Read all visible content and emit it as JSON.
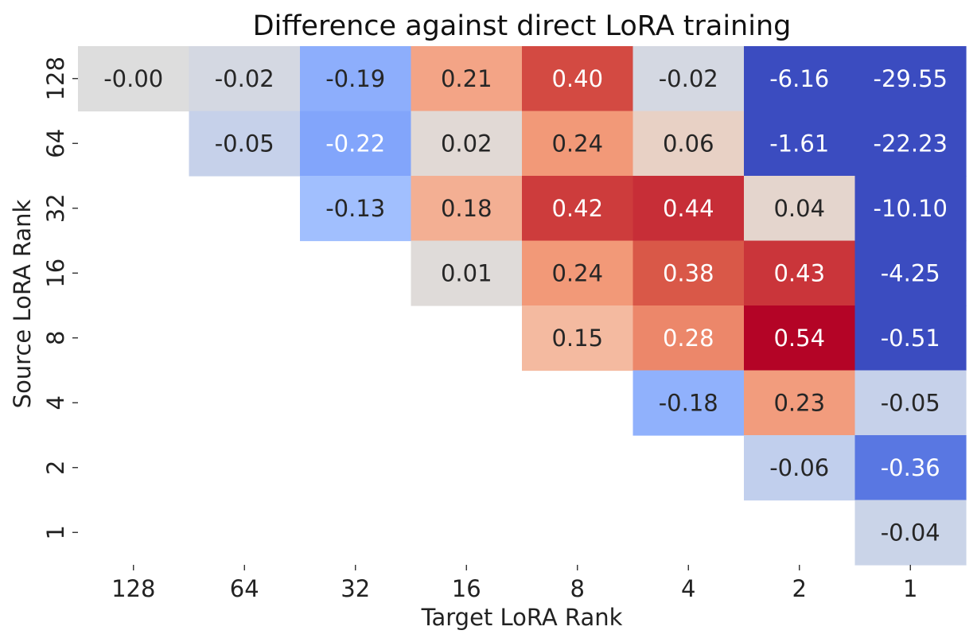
{
  "chart_data": {
    "type": "heatmap",
    "title": "Difference against direct LoRA training",
    "xlabel": "Target LoRA Rank",
    "ylabel": "Source LoRA Rank",
    "x_categories": [
      "128",
      "64",
      "32",
      "16",
      "8",
      "4",
      "2",
      "1"
    ],
    "y_categories": [
      "128",
      "64",
      "32",
      "16",
      "8",
      "4",
      "2",
      "1"
    ],
    "values": [
      [
        -0.0,
        -0.02,
        -0.19,
        0.21,
        0.4,
        -0.02,
        -6.16,
        -29.55
      ],
      [
        null,
        -0.05,
        -0.22,
        0.02,
        0.24,
        0.06,
        -1.61,
        -22.23
      ],
      [
        null,
        null,
        -0.13,
        0.18,
        0.42,
        0.44,
        0.04,
        -10.1
      ],
      [
        null,
        null,
        null,
        0.01,
        0.24,
        0.38,
        0.43,
        -4.25
      ],
      [
        null,
        null,
        null,
        null,
        0.15,
        0.28,
        0.54,
        -0.51
      ],
      [
        null,
        null,
        null,
        null,
        null,
        -0.18,
        0.23,
        -0.05
      ],
      [
        null,
        null,
        null,
        null,
        null,
        null,
        -0.06,
        -0.36
      ],
      [
        null,
        null,
        null,
        null,
        null,
        null,
        null,
        -0.04
      ]
    ],
    "labels": [
      [
        "-0.00",
        "-0.02",
        "-0.19",
        "0.21",
        "0.40",
        "-0.02",
        "-6.16",
        "-29.55"
      ],
      [
        null,
        "-0.05",
        "-0.22",
        "0.02",
        "0.24",
        "0.06",
        "-1.61",
        "-22.23"
      ],
      [
        null,
        null,
        "-0.13",
        "0.18",
        "0.42",
        "0.44",
        "0.04",
        "-10.10"
      ],
      [
        null,
        null,
        null,
        "0.01",
        "0.24",
        "0.38",
        "0.43",
        "-4.25"
      ],
      [
        null,
        null,
        null,
        null,
        "0.15",
        "0.28",
        "0.54",
        "-0.51"
      ],
      [
        null,
        null,
        null,
        null,
        null,
        "-0.18",
        "0.23",
        "-0.05"
      ],
      [
        null,
        null,
        null,
        null,
        null,
        null,
        "-0.06",
        "-0.36"
      ],
      [
        null,
        null,
        null,
        null,
        null,
        null,
        null,
        "-0.04"
      ]
    ],
    "colormap": "coolwarm",
    "vlim": [
      -0.5,
      0.5
    ],
    "colorbar": false
  }
}
